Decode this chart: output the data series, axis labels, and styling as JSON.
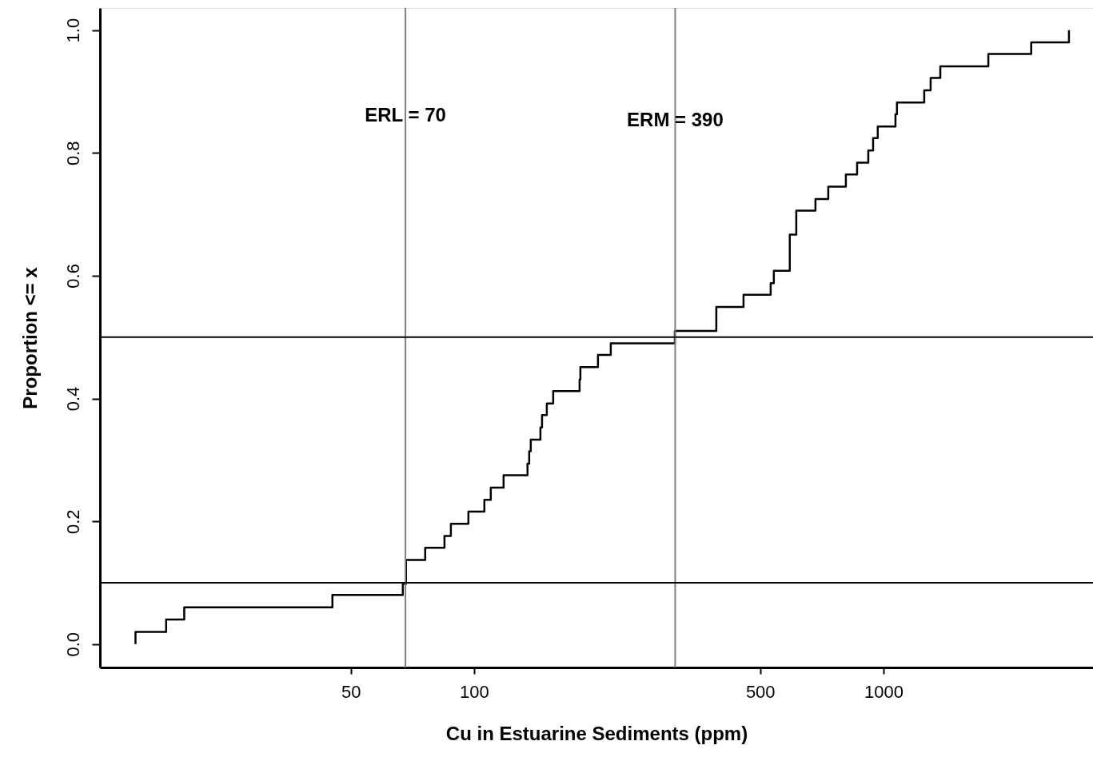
{
  "chart_data": {
    "type": "step",
    "xlabel": "Cu in Estuarine Sediments (ppm)",
    "ylabel": "Proportion <= x",
    "log": "x",
    "grid": false,
    "marker": "none",
    "line_style": "solid",
    "xlim": [
      12.2,
      3250
    ],
    "xticks": [
      50,
      100,
      500,
      1000
    ],
    "ylim": [
      -0.038,
      1.036
    ],
    "yticks": [
      {
        "value": 0,
        "label": "0.0"
      },
      {
        "value": 0.2,
        "label": "0.2"
      },
      {
        "value": 0.4,
        "label": "0.4"
      },
      {
        "value": 0.6,
        "label": "0.6"
      },
      {
        "value": 0.8,
        "label": "0.8"
      },
      {
        "value": 1,
        "label": "1.0"
      }
    ],
    "series": [
      {
        "color": "#000000",
        "x": [
          14.9,
          14.9,
          17.7,
          19.6,
          45.1,
          67.0,
          68.2,
          76.0,
          84.7,
          87.8,
          96.9,
          106.0,
          109.9,
          118.1,
          135.1,
          136.4,
          137.6,
          145.3,
          146.6,
          150.6,
          156.1,
          181.1,
          181.9,
          200.8,
          215.8,
          309.4,
          390.7,
          455.3,
          530.4,
          539.9,
          590.6,
          590.6,
          612.6,
          682.3,
          733.3,
          809.6,
          862.3,
          918.4,
          943.6,
          968.6,
          1070,
          1079,
          1258,
          1304,
          1377,
          1804,
          2296,
          2839
        ],
        "values": [
          0,
          0.02,
          0.04,
          0.06,
          0.08,
          0.098,
          0.137,
          0.157,
          0.176,
          0.196,
          0.216,
          0.235,
          0.255,
          0.275,
          0.294,
          0.314,
          0.333,
          0.353,
          0.373,
          0.392,
          0.412,
          0.431,
          0.451,
          0.471,
          0.49,
          0.51,
          0.549,
          0.569,
          0.588,
          0.608,
          0.627,
          0.667,
          0.706,
          0.725,
          0.745,
          0.765,
          0.784,
          0.804,
          0.824,
          0.843,
          0.863,
          0.882,
          0.902,
          0.922,
          0.941,
          0.961,
          0.98,
          1.0
        ]
      }
    ],
    "ref_lines": [
      {
        "axis": "x",
        "value": 68,
        "color": "#808080"
      },
      {
        "axis": "x",
        "value": 310,
        "color": "#808080"
      },
      {
        "axis": "y",
        "value": 0.1,
        "color": "#000000"
      },
      {
        "axis": "y",
        "value": 0.5,
        "color": "#000000"
      }
    ],
    "annotations": [
      {
        "text": "ERL = 70",
        "x": 68,
        "y": 0.86
      },
      {
        "text": "ERM = 390",
        "x": 310,
        "y": 0.853
      }
    ]
  }
}
